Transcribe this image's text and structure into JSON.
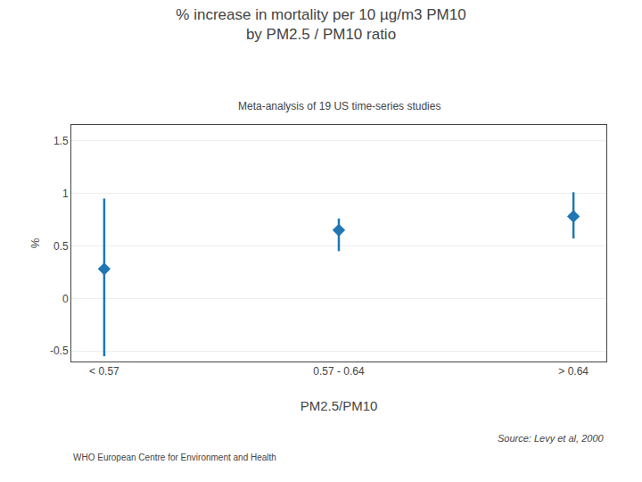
{
  "chart_data": {
    "type": "scatter",
    "title": "% increase in mortality per 10 µg/m3 PM10\nby PM2.5 / PM10 ratio",
    "subtitle": "Meta-analysis of 19 US time-series studies",
    "xlabel": "PM2.5/PM10",
    "ylabel": "%",
    "categories": [
      "< 0.57",
      "0.57 - 0.64",
      "> 0.64"
    ],
    "values": [
      0.28,
      0.65,
      0.78
    ],
    "y_lower": [
      -0.55,
      0.45,
      0.57
    ],
    "y_upper": [
      0.95,
      0.76,
      1.01
    ],
    "ylim": [
      -0.6,
      1.65
    ],
    "yticks": [
      -0.5,
      0,
      0.5,
      1,
      1.5
    ],
    "grid": true,
    "marker": "diamond",
    "annotations": [
      "Source: Levy et al, 2000",
      "WHO European Centre for Environment and Health"
    ]
  }
}
